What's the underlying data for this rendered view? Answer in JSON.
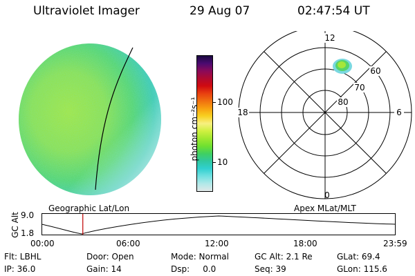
{
  "header": {
    "instrument": "Ultraviolet Imager",
    "date": "29 Aug 07",
    "time": "02:47:54 UT"
  },
  "colorbar": {
    "unit_label": "photon cm⁻²s⁻¹",
    "ticks": [
      "100",
      "10"
    ],
    "colors": [
      "#1a0a40",
      "#4a0a70",
      "#8a0a5a",
      "#b00a30",
      "#d00a10",
      "#e84010",
      "#f07010",
      "#f8a010",
      "#f8d020",
      "#f8f080",
      "#d0f040",
      "#a0e830",
      "#70e030",
      "#40d060",
      "#30c8a0",
      "#30d0d0",
      "#70e0e0",
      "#b0e8e8",
      "#e0e8e8"
    ]
  },
  "polar": {
    "mlt_labels": [
      "12",
      "18",
      "6",
      "0"
    ],
    "lat_labels": [
      "60",
      "70",
      "80"
    ]
  },
  "timeline": {
    "left_title": "Geographic Lat/Lon",
    "right_title": "Apex  MLat/MLT",
    "axis_title": "GC Alt",
    "y_ticks": [
      "9.0",
      "1.8"
    ],
    "x_ticks": [
      "00:00",
      "06:00",
      "12:00",
      "18:00",
      "23:59"
    ],
    "marker_hour": 2.8
  },
  "info": {
    "flt": "Flt: LBHL",
    "door": "Door: Open",
    "mode": "Mode: Normal",
    "gc_alt": "GC Alt: 2.1 Re",
    "glat": "GLat:  69.4",
    "ip": "IP: 36.0",
    "gain": "Gain: 14",
    "dsp": "Dsp:     0.0",
    "seq": "Seq: 39",
    "glon": "GLon: 115.6"
  }
}
